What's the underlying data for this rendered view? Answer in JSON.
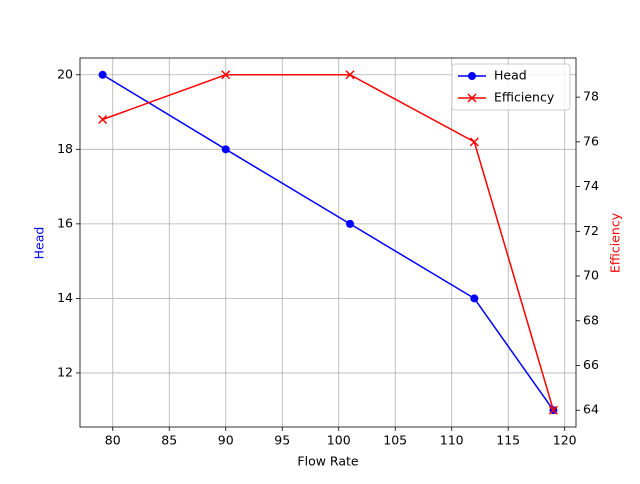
{
  "chart_data": {
    "type": "line",
    "x_label": "Flow Rate",
    "y_label": "Head",
    "y2_label": "Efficiency",
    "x": [
      79.1,
      90,
      101,
      112,
      119
    ],
    "series": [
      {
        "name": "Head",
        "color": "#0000ff",
        "marker": "o",
        "values": [
          20,
          18,
          16,
          14,
          11
        ]
      },
      {
        "name": "Efficiency",
        "color": "#ff0000",
        "marker": "x",
        "axis": "y2",
        "values": [
          77,
          79,
          79,
          76,
          64
        ]
      }
    ],
    "xlim": [
      77.1,
      121
    ],
    "xticks": [
      80,
      85,
      90,
      95,
      100,
      105,
      110,
      115,
      120
    ],
    "ylim": [
      10.55,
      20.45
    ],
    "yticks": [
      12,
      14,
      16,
      18,
      20
    ],
    "y2lim": [
      63.25,
      79.75
    ],
    "y2ticks": [
      64,
      66,
      68,
      70,
      72,
      74,
      76,
      78
    ],
    "grid": true,
    "legend": "upper right"
  }
}
